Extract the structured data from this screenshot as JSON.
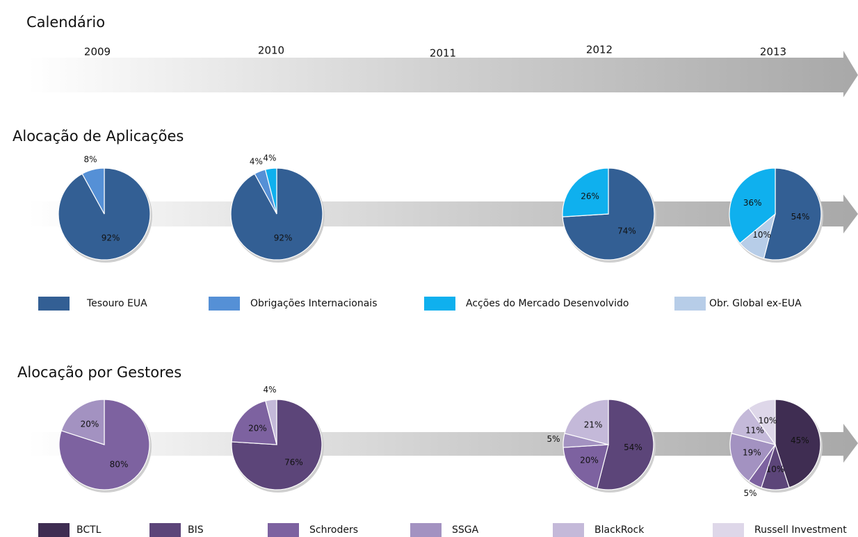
{
  "calendar": {
    "title": "Calendário",
    "years": [
      "2009",
      "2010",
      "2011",
      "2012",
      "2013"
    ]
  },
  "chart_data": [
    {
      "type": "pie",
      "title": "Alocação de Aplicações",
      "categories": [
        "Tesouro EUA",
        "Obrigações Internacionais",
        "Acções do Mercado Desenvolvido",
        "Obr. Global ex-EUA"
      ],
      "colors": [
        "#335f94",
        "#5590d6",
        "#0fb0ee",
        "#b7cde8"
      ],
      "pies": [
        {
          "values": [
            92,
            8,
            null,
            null
          ],
          "value_labels": [
            "92%",
            "8%",
            null,
            null
          ]
        },
        {
          "values": [
            92,
            4,
            4,
            null
          ],
          "value_labels": [
            "92%",
            "4%",
            "4%",
            null
          ]
        },
        {
          "values": [
            74,
            null,
            26,
            null
          ],
          "value_labels": [
            "74%",
            null,
            "26%",
            null
          ]
        },
        {
          "values": [
            54,
            null,
            36,
            10
          ],
          "value_labels": [
            "54%",
            null,
            "36%",
            "10%"
          ]
        }
      ]
    },
    {
      "type": "pie",
      "title": "Alocação por Gestores",
      "categories": [
        "BCTL",
        "BIS",
        "Schroders",
        "SSGA",
        "BlackRock",
        "Russell Investment"
      ],
      "colors": [
        "#3f2d52",
        "#5c4579",
        "#7d62a0",
        "#a392c1",
        "#c4b9d9",
        "#ded7e9"
      ],
      "pies": [
        {
          "values": [
            null,
            null,
            80,
            20,
            null,
            null
          ],
          "value_labels": [
            null,
            null,
            "80%",
            "20%",
            null,
            null
          ]
        },
        {
          "values": [
            null,
            76,
            20,
            null,
            4,
            null
          ],
          "value_labels": [
            null,
            "76%",
            "20%",
            null,
            "4%",
            null
          ]
        },
        {
          "values": [
            null,
            54,
            20,
            5,
            21,
            null
          ],
          "value_labels": [
            null,
            "54%",
            "20%",
            "5%",
            "21%",
            null
          ]
        },
        {
          "values": [
            45,
            10,
            5,
            19,
            11,
            10
          ],
          "value_labels": [
            "45%",
            "10%",
            "5%",
            "19%",
            "11%",
            "10%"
          ]
        }
      ]
    }
  ]
}
